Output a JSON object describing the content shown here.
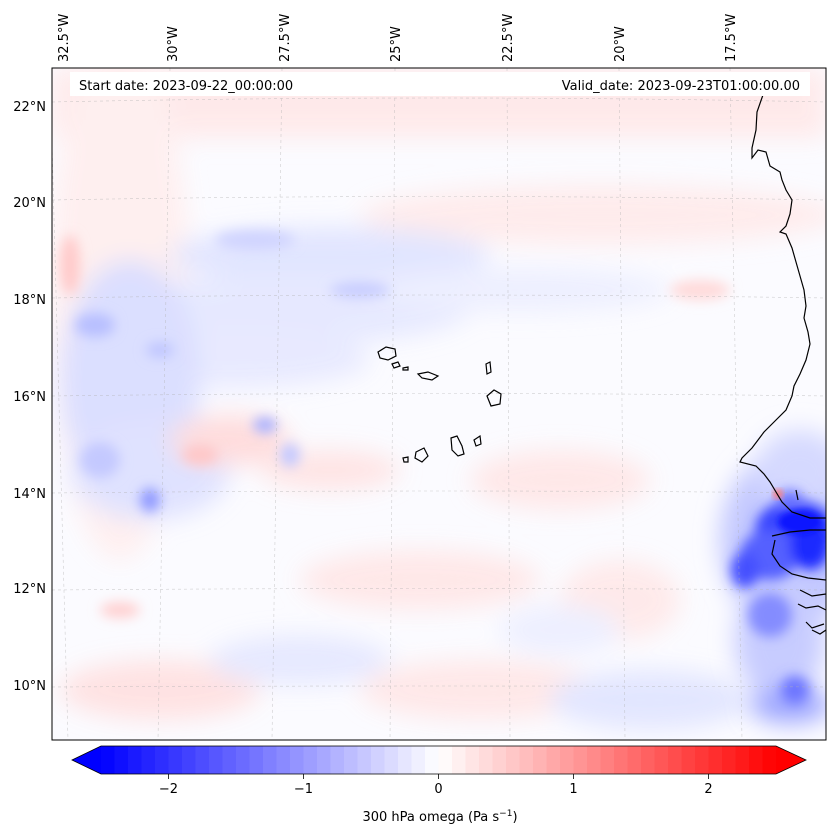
{
  "map": {
    "start_date_label": "Start date: 2023-09-22_00:00:00",
    "valid_date_label": "Valid_date: 2023-09-23T01:00:00.00",
    "lon_labels": [
      "32.5°W",
      "30°W",
      "27.5°W",
      "25°W",
      "22.5°W",
      "20°W",
      "17.5°W"
    ],
    "lat_labels": [
      "22°N",
      "20°N",
      "18°N",
      "16°N",
      "14°N",
      "12°N",
      "10°N"
    ],
    "colorbar": {
      "label": "300 hPa omega (Pa s",
      "label_exp": "−1",
      "label_end": ")",
      "ticks": [
        "−2",
        "−1",
        "0",
        "1",
        "2"
      ],
      "tick_values": [
        -2,
        -1,
        0,
        1,
        2
      ],
      "range": [
        -2.5,
        2.5
      ],
      "cmap": "bwr",
      "negative_color": "#0000ff",
      "positive_color": "#ff0000",
      "zero_color": "#ffffff"
    },
    "coastline_color": "#000000",
    "gridline_color": "#b0b0b0"
  }
}
